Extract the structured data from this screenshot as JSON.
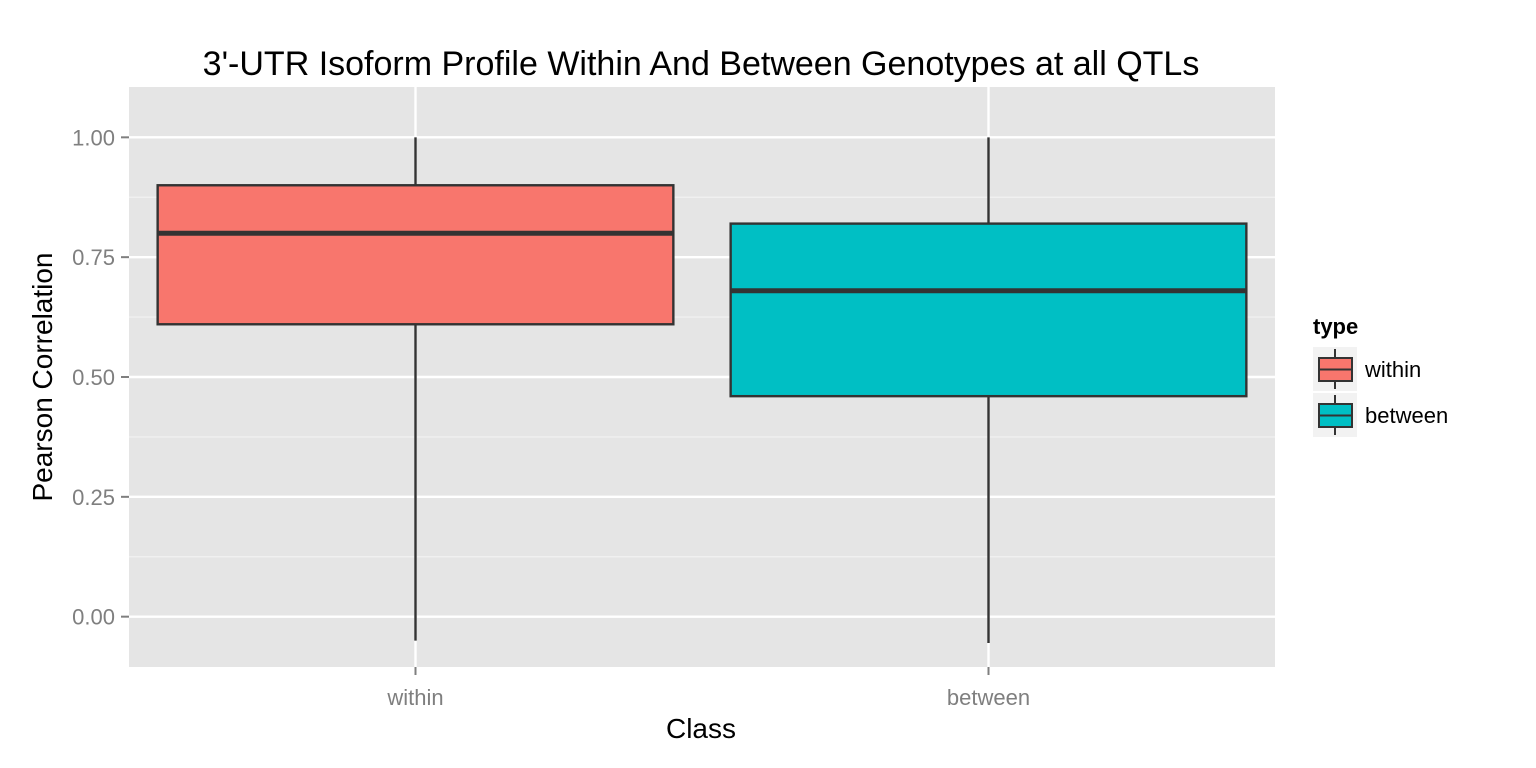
{
  "chart_data": {
    "type": "box",
    "title": "3'-UTR Isoform Profile Within And Between Genotypes at all QTLs",
    "xlabel": "Class",
    "ylabel": "Pearson Correlation",
    "ylim": [
      -0.105,
      1.105
    ],
    "yticks": [
      0.0,
      0.25,
      0.5,
      0.75,
      1.0
    ],
    "ytick_labels": [
      "0.00",
      "0.25",
      "0.50",
      "0.75",
      "1.00"
    ],
    "categories": [
      "within",
      "between"
    ],
    "grid": true,
    "legend": {
      "title": "type",
      "position": "right",
      "entries": [
        "within",
        "between"
      ]
    },
    "series": [
      {
        "name": "within",
        "min": -0.05,
        "q1": 0.61,
        "median": 0.8,
        "q3": 0.9,
        "max": 1.0,
        "color": "#F8766D"
      },
      {
        "name": "between",
        "min": -0.055,
        "q1": 0.46,
        "median": 0.68,
        "q3": 0.82,
        "max": 1.0,
        "color": "#00BFC4"
      }
    ],
    "panel_color": "#E5E5E5",
    "grid_color": "#FFFFFF",
    "line_color": "#333333"
  }
}
